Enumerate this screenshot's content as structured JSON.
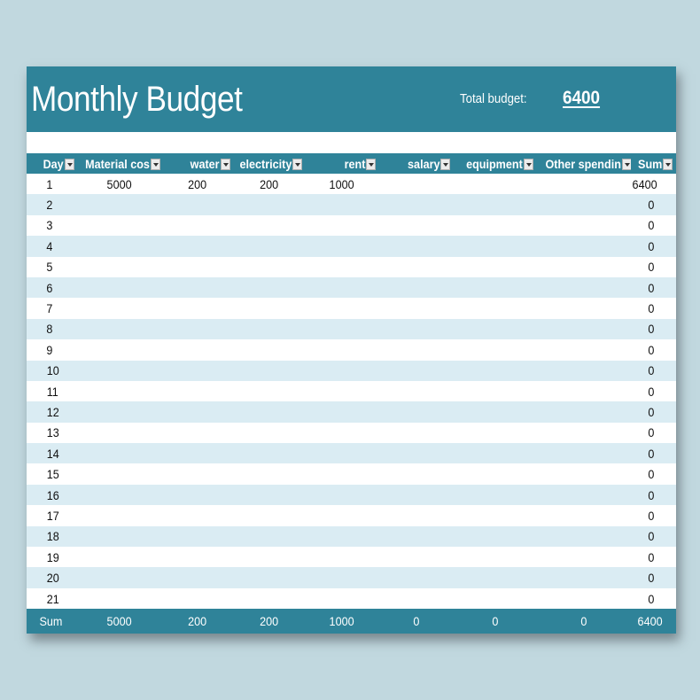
{
  "header": {
    "title": "Monthly Budget",
    "total_label": "Total budget:",
    "total_value": "6400"
  },
  "colors": {
    "accent": "#2f8399",
    "band_row": "#daecf3",
    "background": "#c1d8df"
  },
  "table": {
    "columns": [
      {
        "label": "Day",
        "filter_icon": "dropdown-filter-icon"
      },
      {
        "label": "Material cos",
        "filter_icon": "dropdown-filter-icon"
      },
      {
        "label": "water",
        "filter_icon": "dropdown-filter-icon"
      },
      {
        "label": "electricity",
        "filter_icon": "dropdown-filter-icon"
      },
      {
        "label": "rent",
        "filter_icon": "dropdown-filter-icon"
      },
      {
        "label": "salary",
        "filter_icon": "dropdown-filter-icon"
      },
      {
        "label": "equipment",
        "filter_icon": "dropdown-filter-icon"
      },
      {
        "label": "Other spendin",
        "filter_icon": "dropdown-filter-icon"
      },
      {
        "label": "Sum",
        "filter_icon": "dropdown-filter-icon"
      }
    ],
    "rows": [
      [
        "1",
        "5000",
        "200",
        "200",
        "1000",
        "",
        "",
        "",
        "6400"
      ],
      [
        "2",
        "",
        "",
        "",
        "",
        "",
        "",
        "",
        "0"
      ],
      [
        "3",
        "",
        "",
        "",
        "",
        "",
        "",
        "",
        "0"
      ],
      [
        "4",
        "",
        "",
        "",
        "",
        "",
        "",
        "",
        "0"
      ],
      [
        "5",
        "",
        "",
        "",
        "",
        "",
        "",
        "",
        "0"
      ],
      [
        "6",
        "",
        "",
        "",
        "",
        "",
        "",
        "",
        "0"
      ],
      [
        "7",
        "",
        "",
        "",
        "",
        "",
        "",
        "",
        "0"
      ],
      [
        "8",
        "",
        "",
        "",
        "",
        "",
        "",
        "",
        "0"
      ],
      [
        "9",
        "",
        "",
        "",
        "",
        "",
        "",
        "",
        "0"
      ],
      [
        "10",
        "",
        "",
        "",
        "",
        "",
        "",
        "",
        "0"
      ],
      [
        "11",
        "",
        "",
        "",
        "",
        "",
        "",
        "",
        "0"
      ],
      [
        "12",
        "",
        "",
        "",
        "",
        "",
        "",
        "",
        "0"
      ],
      [
        "13",
        "",
        "",
        "",
        "",
        "",
        "",
        "",
        "0"
      ],
      [
        "14",
        "",
        "",
        "",
        "",
        "",
        "",
        "",
        "0"
      ],
      [
        "15",
        "",
        "",
        "",
        "",
        "",
        "",
        "",
        "0"
      ],
      [
        "16",
        "",
        "",
        "",
        "",
        "",
        "",
        "",
        "0"
      ],
      [
        "17",
        "",
        "",
        "",
        "",
        "",
        "",
        "",
        "0"
      ],
      [
        "18",
        "",
        "",
        "",
        "",
        "",
        "",
        "",
        "0"
      ],
      [
        "19",
        "",
        "",
        "",
        "",
        "",
        "",
        "",
        "0"
      ],
      [
        "20",
        "",
        "",
        "",
        "",
        "",
        "",
        "",
        "0"
      ],
      [
        "21",
        "",
        "",
        "",
        "",
        "",
        "",
        "",
        "0"
      ]
    ],
    "totals": [
      "Sum",
      "5000",
      "200",
      "200",
      "1000",
      "0",
      "0",
      "0",
      "6400"
    ]
  }
}
